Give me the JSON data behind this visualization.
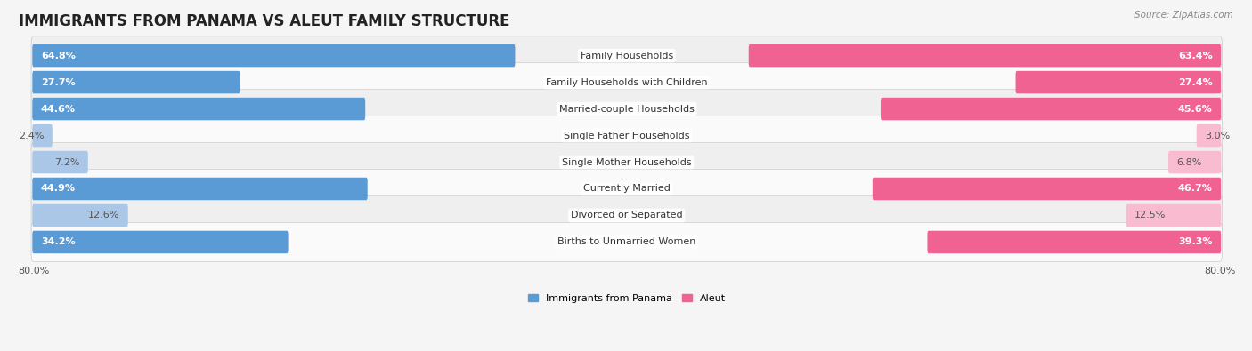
{
  "title": "IMMIGRANTS FROM PANAMA VS ALEUT FAMILY STRUCTURE",
  "source": "Source: ZipAtlas.com",
  "categories": [
    "Family Households",
    "Family Households with Children",
    "Married-couple Households",
    "Single Father Households",
    "Single Mother Households",
    "Currently Married",
    "Divorced or Separated",
    "Births to Unmarried Women"
  ],
  "panama_values": [
    64.8,
    27.7,
    44.6,
    2.4,
    7.2,
    44.9,
    12.6,
    34.2
  ],
  "aleut_values": [
    63.4,
    27.4,
    45.6,
    3.0,
    6.8,
    46.7,
    12.5,
    39.3
  ],
  "panama_color_dark": "#5b9bd5",
  "panama_color_light": "#aac7e8",
  "aleut_color_dark": "#f06292",
  "aleut_color_light": "#f8bbd0",
  "bar_height": 0.55,
  "max_val": 80.0,
  "dark_threshold": 20.0,
  "bg_color": "#f5f5f5",
  "row_bg": "#ffffff",
  "row_alt_bg": "#f0f0f0",
  "title_fontsize": 12,
  "label_fontsize": 8,
  "value_fontsize": 8,
  "axis_fontsize": 8,
  "legend_label_panama": "Immigrants from Panama",
  "legend_label_aleut": "Aleut"
}
